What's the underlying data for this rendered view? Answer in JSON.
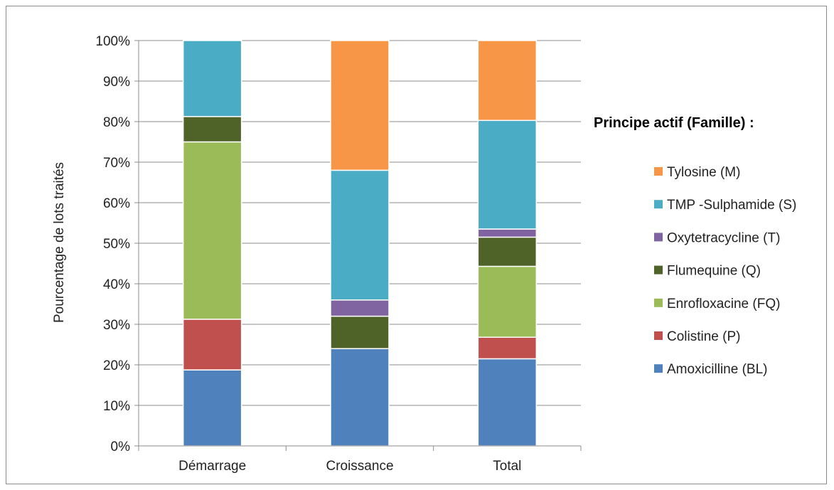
{
  "chart_data": {
    "type": "bar",
    "stacked": true,
    "percent_stacked": true,
    "categories": [
      "Démarrage",
      "Croissance",
      "Total"
    ],
    "ylabel": "Pourcentage de lots traités",
    "xlabel": "",
    "ylim": [
      0,
      100
    ],
    "y_ticks": [
      "0%",
      "10%",
      "20%",
      "30%",
      "40%",
      "50%",
      "60%",
      "70%",
      "80%",
      "90%",
      "100%"
    ],
    "grid": true,
    "legend_title": "Principe actif (Famille) :",
    "legend_position": "right",
    "series": [
      {
        "name": "Amoxicilline (BL)",
        "color": "#4f81bd",
        "values": [
          18.75,
          24,
          21.5
        ]
      },
      {
        "name": "Colistine (P)",
        "color": "#c0504d",
        "values": [
          12.5,
          0,
          5.3
        ]
      },
      {
        "name": "Enrofloxacine (FQ)",
        "color": "#9bbb59",
        "values": [
          43.75,
          0,
          17.5
        ]
      },
      {
        "name": "Flumequine (Q)",
        "color": "#4f6228",
        "values": [
          6.25,
          8,
          7.2
        ]
      },
      {
        "name": "Oxytetracycline (T)",
        "color": "#8064a2",
        "values": [
          0,
          4,
          2
        ]
      },
      {
        "name": "TMP -Sulphamide (S)",
        "color": "#4bacc6",
        "values": [
          18.75,
          32,
          26.8
        ]
      },
      {
        "name": "Tylosine (M)",
        "color": "#f79646",
        "values": [
          0,
          32,
          19.7
        ]
      }
    ]
  }
}
